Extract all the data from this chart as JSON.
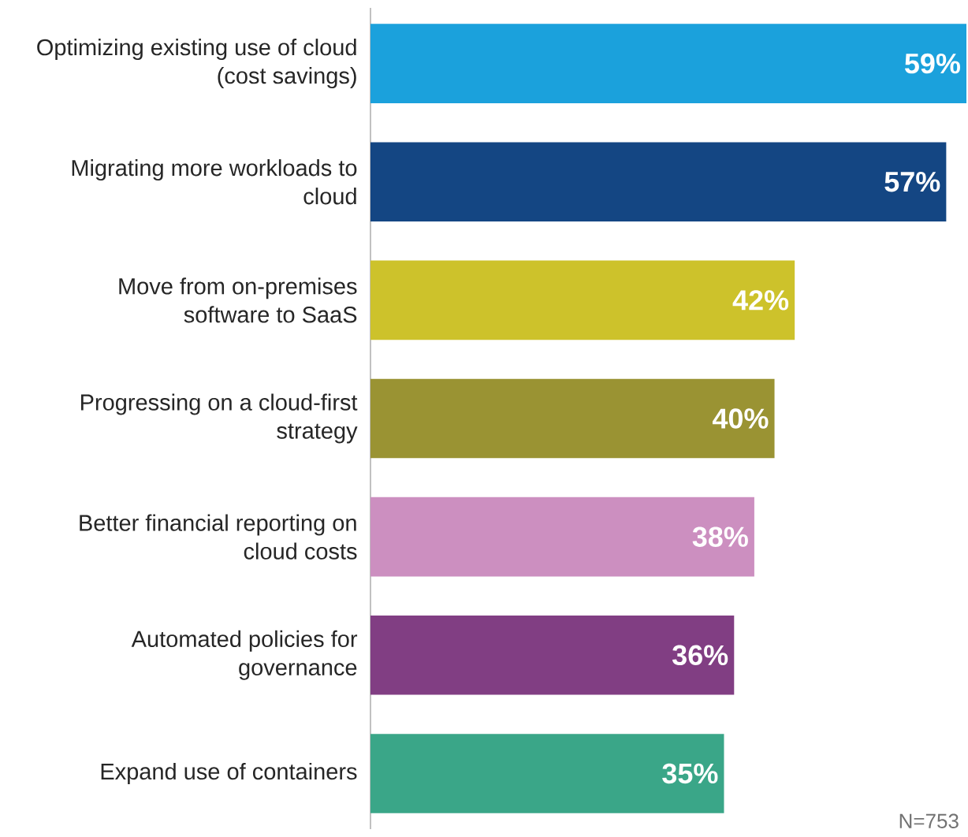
{
  "chart_data": {
    "type": "bar",
    "orientation": "horizontal",
    "categories": [
      "Optimizing existing use of cloud (cost savings)",
      "Migrating more workloads to cloud",
      "Move from on-premises software to SaaS",
      "Progressing on a cloud-first strategy",
      "Better financial reporting on cloud costs",
      "Automated policies for governance",
      "Expand use of containers"
    ],
    "values": [
      59,
      57,
      42,
      40,
      38,
      36,
      35
    ],
    "value_labels": [
      "59%",
      "57%",
      "42%",
      "40%",
      "38%",
      "36%",
      "35%"
    ],
    "colors": [
      "#1ba1dc",
      "#144683",
      "#cdc22b",
      "#9a9333",
      "#cc8fc0",
      "#813e83",
      "#3aa688"
    ],
    "annotations": [
      "N=753"
    ]
  }
}
